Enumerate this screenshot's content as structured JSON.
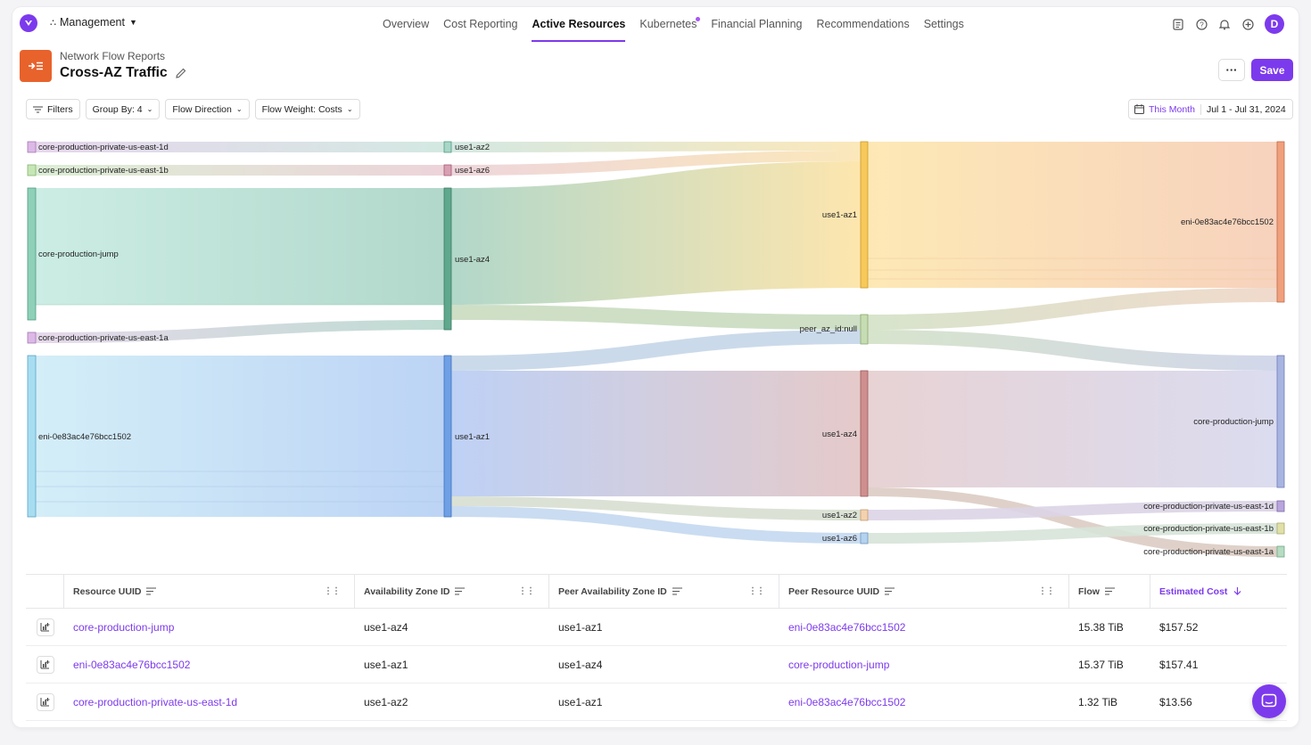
{
  "nav": {
    "org": "Management",
    "tabs": [
      {
        "label": "Overview"
      },
      {
        "label": "Cost Reporting"
      },
      {
        "label": "Active Resources"
      },
      {
        "label": "Kubernetes"
      },
      {
        "label": "Financial Planning"
      },
      {
        "label": "Recommendations"
      },
      {
        "label": "Settings"
      }
    ],
    "avatar_initial": "D"
  },
  "header": {
    "breadcrumb": "Network Flow Reports",
    "title": "Cross-AZ Traffic",
    "more_label": "···",
    "save_label": "Save"
  },
  "filters": {
    "filters_label": "Filters",
    "group_by_label": "Group By: 4",
    "flow_direction_label": "Flow Direction",
    "flow_weight_label": "Flow Weight: Costs",
    "date_period": "This Month",
    "date_range": "Jul 1 - Jul 31, 2024"
  },
  "sankey": {
    "columns": [
      [
        "core-production-private-us-east-1d",
        "core-production-private-us-east-1b",
        "core-production-jump",
        "core-production-private-us-east-1a",
        "eni-0e83ac4e76bcc1502"
      ],
      [
        "use1-az2",
        "use1-az6",
        "use1-az4",
        "use1-az1"
      ],
      [
        "use1-az1",
        "peer_az_id:null",
        "use1-az4",
        "use1-az2",
        "use1-az6"
      ],
      [
        "eni-0e83ac4e76bcc1502",
        "core-production-jump",
        "core-production-private-us-east-1d",
        "core-production-private-us-east-1b",
        "core-production-private-us-east-1a"
      ]
    ]
  },
  "table": {
    "columns": [
      "Resource UUID",
      "Availability Zone ID",
      "Peer Availability Zone ID",
      "Peer Resource UUID",
      "Flow",
      "Estimated Cost"
    ],
    "rows": [
      {
        "resource": "core-production-jump",
        "az": "use1-az4",
        "peer_az": "use1-az1",
        "peer_resource": "eni-0e83ac4e76bcc1502",
        "flow": "15.38 TiB",
        "cost": "$157.52"
      },
      {
        "resource": "eni-0e83ac4e76bcc1502",
        "az": "use1-az1",
        "peer_az": "use1-az4",
        "peer_resource": "core-production-jump",
        "flow": "15.37 TiB",
        "cost": "$157.41"
      },
      {
        "resource": "core-production-private-us-east-1d",
        "az": "use1-az2",
        "peer_az": "use1-az1",
        "peer_resource": "eni-0e83ac4e76bcc1502",
        "flow": "1.32 TiB",
        "cost": "$13.56"
      }
    ]
  }
}
